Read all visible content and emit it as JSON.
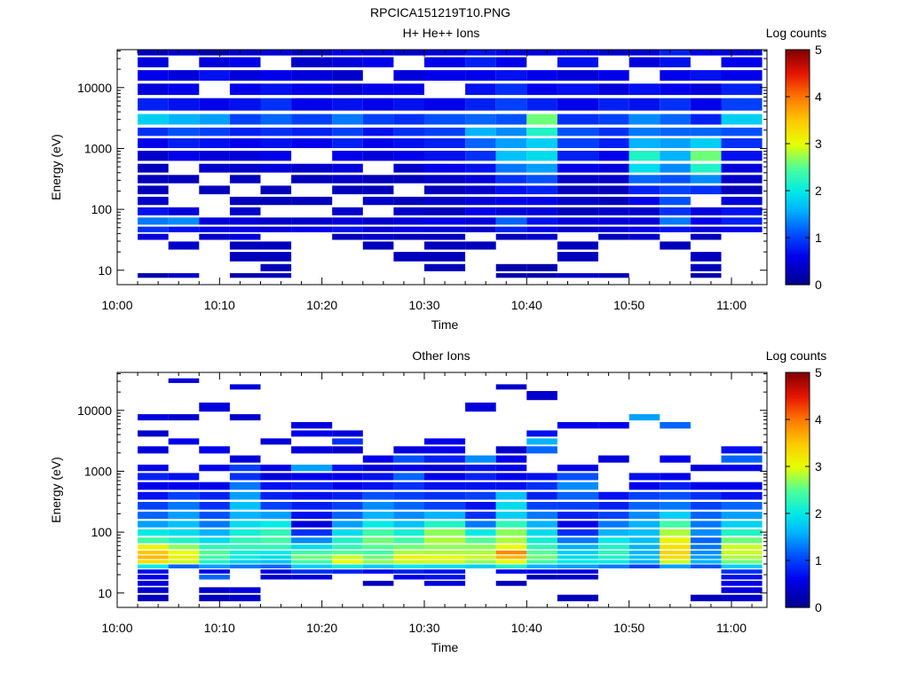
{
  "figure_title": "RPCICA151219T10.PNG",
  "chart_data": [
    {
      "type": "heatmap",
      "title": "H+ He++ Ions",
      "xlabel": "Time",
      "ylabel": "Energy (eV)",
      "x_ticks": [
        "10:00",
        "10:10",
        "10:20",
        "10:30",
        "10:40",
        "10:50",
        "11:00"
      ],
      "y_ticks": [
        "10",
        "100",
        "1000",
        "10000"
      ],
      "y_scale": "log",
      "ylim": [
        5.8,
        42000
      ],
      "colorbar": {
        "label": "Log counts",
        "ticks": [
          "0",
          "1",
          "2",
          "3",
          "4",
          "5"
        ],
        "range": [
          0,
          5
        ]
      },
      "time_bins": [
        "10:02-10:05",
        "10:05-10:08",
        "10:08-10:11",
        "10:11-10:14",
        "10:14-10:17",
        "10:17-10:21",
        "10:21-10:24",
        "10:24-10:27",
        "10:27-10:30",
        "10:30-10:34",
        "10:34-10:37",
        "10:37-10:40",
        "10:40-10:43",
        "10:43-10:47",
        "10:47-10:50",
        "10:50-10:53",
        "10:53-10:56",
        "10:56-10:59",
        "10:59-11:03"
      ],
      "energy_bands_eV": [
        40000,
        25000,
        15000,
        9000,
        5000,
        2700,
        1800,
        1200,
        700,
        450,
        300,
        200,
        130,
        90,
        60,
        45,
        35,
        25,
        16,
        10,
        8
      ],
      "log_counts": [
        [
          0.3,
          0.4,
          0.2,
          0.4,
          0.5,
          0.3,
          0.6,
          0.5,
          0.4,
          0.5,
          0.7,
          0.6,
          0.5,
          0.6,
          0.4,
          0.5,
          0.8,
          0.6,
          0.5
        ],
        [
          0.5,
          -1,
          0.5,
          0.6,
          -1,
          0.4,
          0.5,
          0.6,
          -1,
          0.6,
          0.8,
          0.6,
          -1,
          0.7,
          -1,
          0.5,
          0.7,
          -1,
          0.6
        ],
        [
          0.6,
          0.5,
          0.7,
          0.5,
          0.6,
          0.5,
          0.4,
          -1,
          0.5,
          0.6,
          0.6,
          0.7,
          0.6,
          0.5,
          0.6,
          -1,
          0.6,
          0.7,
          0.6
        ],
        [
          0.5,
          0.6,
          -1,
          0.6,
          0.7,
          0.6,
          0.5,
          0.6,
          0.6,
          -1,
          0.7,
          0.9,
          0.6,
          0.7,
          0.5,
          0.7,
          0.6,
          0.5,
          0.8
        ],
        [
          0.8,
          0.7,
          0.6,
          0.7,
          0.9,
          0.6,
          0.7,
          0.6,
          0.7,
          0.6,
          0.8,
          1.0,
          0.8,
          0.6,
          0.8,
          0.7,
          0.9,
          0.6,
          1.0
        ],
        [
          1.8,
          1.6,
          1.5,
          1.0,
          1.2,
          1.0,
          1.3,
          1.0,
          0.9,
          1.1,
          1.2,
          1.1,
          2.6,
          0.9,
          1.0,
          1.4,
          1.2,
          0.8,
          1.8
        ],
        [
          0.9,
          1.1,
          1.0,
          0.8,
          0.9,
          0.8,
          1.0,
          0.7,
          0.9,
          1.0,
          1.6,
          1.4,
          2.2,
          1.1,
          0.9,
          1.3,
          1.2,
          1.2,
          1.1
        ],
        [
          0.6,
          0.8,
          0.7,
          0.6,
          0.7,
          0.6,
          0.8,
          0.6,
          0.7,
          0.8,
          1.2,
          1.5,
          1.8,
          1.0,
          0.8,
          1.6,
          1.5,
          1.8,
          0.9
        ],
        [
          0.4,
          0.6,
          0.5,
          0.5,
          0.6,
          -1,
          0.6,
          0.5,
          0.6,
          0.7,
          0.9,
          1.7,
          1.9,
          0.8,
          0.6,
          2.2,
          1.6,
          2.6,
          0.7
        ],
        [
          0.3,
          -1,
          0.4,
          0.4,
          0.5,
          0.4,
          0.5,
          -1,
          0.4,
          0.6,
          0.7,
          1.3,
          1.5,
          0.6,
          0.5,
          1.9,
          1.4,
          2.2,
          0.5
        ],
        [
          0.3,
          0.3,
          -1,
          0.3,
          -1,
          0.3,
          0.4,
          0.3,
          0.3,
          0.4,
          0.5,
          0.9,
          1.1,
          0.4,
          0.4,
          1.2,
          1.1,
          1.4,
          0.4
        ],
        [
          0.3,
          -1,
          0.3,
          -1,
          0.3,
          -1,
          0.3,
          0.3,
          -1,
          0.3,
          0.4,
          0.7,
          0.8,
          0.3,
          0.3,
          0.8,
          1.0,
          0.9,
          0.3
        ],
        [
          0.4,
          -1,
          -1,
          0.3,
          0.3,
          0.3,
          -1,
          0.4,
          0.3,
          0.4,
          0.5,
          0.6,
          0.6,
          0.4,
          0.3,
          0.6,
          1.1,
          -1,
          0.5
        ],
        [
          0.7,
          0.5,
          -1,
          0.4,
          -1,
          -1,
          0.4,
          -1,
          0.4,
          0.3,
          0.6,
          0.5,
          0.5,
          0.3,
          0.4,
          0.4,
          0.9,
          0.5,
          0.7
        ],
        [
          1.3,
          1.4,
          0.5,
          0.5,
          0.4,
          0.4,
          0.5,
          0.4,
          0.5,
          0.6,
          0.5,
          1.2,
          0.7,
          0.5,
          0.5,
          0.5,
          1.3,
          0.6,
          0.8
        ],
        [
          0.9,
          0.7,
          0.6,
          0.6,
          0.5,
          0.6,
          0.7,
          0.5,
          0.6,
          0.5,
          0.4,
          0.8,
          0.6,
          0.4,
          0.5,
          0.6,
          0.7,
          0.5,
          0.6
        ],
        [
          0.5,
          -1,
          0.4,
          0.5,
          -1,
          -1,
          0.3,
          0.4,
          0.3,
          0.3,
          -1,
          0.3,
          0.4,
          -1,
          0.3,
          0.4,
          -1,
          0.3,
          -1
        ],
        [
          -1,
          0.4,
          -1,
          0.3,
          0.3,
          -1,
          -1,
          0.3,
          -1,
          0.3,
          0.3,
          -1,
          -1,
          0.3,
          -1,
          -1,
          0.3,
          -1,
          -1
        ],
        [
          -1,
          -1,
          -1,
          0.3,
          0.3,
          -1,
          -1,
          -1,
          0.3,
          0.3,
          -1,
          -1,
          -1,
          0.3,
          -1,
          -1,
          -1,
          0.3,
          -1
        ],
        [
          -1,
          -1,
          -1,
          -1,
          0.3,
          -1,
          -1,
          -1,
          -1,
          0.3,
          -1,
          0.2,
          0.2,
          -1,
          -1,
          -1,
          -1,
          0.3,
          -1
        ],
        [
          0.2,
          0.4,
          -1,
          0.2,
          0.3,
          -1,
          -1,
          -1,
          -1,
          -1,
          -1,
          0.2,
          0.2,
          0.4,
          0.3,
          -1,
          -1,
          0.2,
          -1
        ]
      ]
    },
    {
      "type": "heatmap",
      "title": "Other Ions",
      "xlabel": "Time",
      "ylabel": "Energy (eV)",
      "x_ticks": [
        "10:00",
        "10:10",
        "10:20",
        "10:30",
        "10:40",
        "10:50",
        "11:00"
      ],
      "y_ticks": [
        "10",
        "100",
        "1000",
        "10000"
      ],
      "y_scale": "log",
      "ylim": [
        5.8,
        42000
      ],
      "colorbar": {
        "label": "Log counts",
        "ticks": [
          "0",
          "1",
          "2",
          "3",
          "4",
          "5"
        ],
        "range": [
          0,
          5
        ]
      },
      "time_bins": [
        "10:02-10:05",
        "10:05-10:08",
        "10:08-10:11",
        "10:11-10:14",
        "10:14-10:17",
        "10:17-10:21",
        "10:21-10:24",
        "10:24-10:27",
        "10:27-10:30",
        "10:30-10:34",
        "10:34-10:37",
        "10:37-10:40",
        "10:40-10:43",
        "10:43-10:47",
        "10:47-10:50",
        "10:50-10:53",
        "10:53-10:56",
        "10:56-10:59",
        "10:59-11:03"
      ],
      "energy_bands_eV": [
        30000,
        24000,
        18000,
        10000,
        7500,
        5500,
        4000,
        3000,
        2200,
        1500,
        1100,
        800,
        550,
        380,
        260,
        180,
        130,
        95,
        70,
        55,
        45,
        38,
        32,
        27,
        22,
        18,
        14,
        11,
        8
      ],
      "log_counts": [
        [
          -1,
          0.5,
          -1,
          -1,
          -1,
          -1,
          -1,
          -1,
          -1,
          -1,
          -1,
          -1,
          -1,
          -1,
          -1,
          -1,
          -1,
          -1,
          -1
        ],
        [
          -1,
          -1,
          -1,
          0.5,
          -1,
          -1,
          -1,
          -1,
          -1,
          -1,
          -1,
          0.4,
          -1,
          -1,
          -1,
          -1,
          -1,
          -1,
          -1
        ],
        [
          -1,
          -1,
          -1,
          -1,
          -1,
          -1,
          -1,
          -1,
          -1,
          -1,
          -1,
          -1,
          0.4,
          -1,
          -1,
          -1,
          -1,
          -1,
          -1
        ],
        [
          -1,
          -1,
          0.5,
          -1,
          -1,
          -1,
          -1,
          -1,
          -1,
          -1,
          0.5,
          -1,
          -1,
          -1,
          -1,
          -1,
          -1,
          -1,
          -1
        ],
        [
          0.5,
          0.4,
          -1,
          0.4,
          -1,
          -1,
          -1,
          -1,
          -1,
          -1,
          -1,
          -1,
          -1,
          -1,
          -1,
          1.5,
          -1,
          -1,
          -1
        ],
        [
          -1,
          -1,
          -1,
          -1,
          -1,
          0.5,
          -1,
          -1,
          -1,
          -1,
          -1,
          -1,
          -1,
          0.6,
          0.6,
          -1,
          1.2,
          -1,
          -1
        ],
        [
          0.4,
          -1,
          -1,
          -1,
          -1,
          0.6,
          0.5,
          -1,
          -1,
          -1,
          -1,
          -1,
          0.7,
          -1,
          -1,
          -1,
          -1,
          -1,
          -1
        ],
        [
          -1,
          0.6,
          -1,
          -1,
          0.5,
          -1,
          0.9,
          -1,
          -1,
          0.6,
          -1,
          -1,
          1.6,
          -1,
          -1,
          -1,
          -1,
          -1,
          -1
        ],
        [
          0.5,
          -1,
          0.6,
          -1,
          -1,
          0.5,
          0.4,
          -1,
          0.5,
          0.6,
          -1,
          0.4,
          1.2,
          -1,
          -1,
          -1,
          -1,
          -1,
          0.7
        ],
        [
          -1,
          -1,
          -1,
          0.5,
          -1,
          -1,
          -1,
          0.6,
          1.1,
          0.8,
          1.4,
          0.6,
          -1,
          -1,
          0.5,
          -1,
          0.6,
          -1,
          1.2
        ],
        [
          0.6,
          -1,
          0.6,
          1.0,
          0.6,
          1.5,
          0.7,
          0.5,
          0.6,
          0.5,
          0.7,
          0.6,
          -1,
          0.6,
          -1,
          -1,
          -1,
          0.5,
          0.6
        ],
        [
          0.8,
          0.7,
          -1,
          0.9,
          0.5,
          0.6,
          0.6,
          0.7,
          1.2,
          0.6,
          0.8,
          0.6,
          0.7,
          1.1,
          -1,
          0.7,
          0.6,
          -1,
          -1
        ],
        [
          0.6,
          0.6,
          0.6,
          1.3,
          0.7,
          0.8,
          0.6,
          0.7,
          0.9,
          0.7,
          0.7,
          0.7,
          0.9,
          1.4,
          -1,
          0.6,
          0.8,
          0.6,
          0.6
        ],
        [
          0.7,
          1.0,
          0.8,
          1.5,
          0.8,
          0.7,
          0.8,
          1.1,
          1.0,
          0.9,
          1.0,
          1.7,
          0.8,
          1.2,
          0.7,
          1.0,
          1.1,
          0.9,
          0.7
        ],
        [
          1.0,
          1.3,
          0.9,
          1.7,
          1.0,
          0.8,
          1.0,
          1.4,
          1.2,
          1.0,
          0.7,
          1.9,
          1.0,
          1.0,
          0.8,
          1.2,
          1.3,
          1.0,
          1.2
        ],
        [
          1.2,
          1.5,
          1.1,
          1.6,
          1.5,
          0.7,
          1.2,
          1.6,
          1.4,
          1.6,
          0.9,
          1.8,
          1.3,
          0.8,
          1.0,
          1.4,
          1.8,
          1.2,
          1.5
        ],
        [
          1.5,
          1.7,
          1.3,
          1.9,
          2.0,
          0.5,
          1.5,
          2.0,
          1.7,
          2.2,
          1.3,
          2.3,
          1.6,
          0.6,
          1.3,
          1.6,
          2.4,
          1.3,
          1.8
        ],
        [
          2.0,
          1.9,
          1.6,
          2.1,
          2.3,
          0.9,
          1.9,
          2.4,
          2.1,
          2.7,
          2.0,
          2.7,
          1.9,
          0.9,
          1.6,
          1.7,
          2.8,
          1.4,
          2.2
        ],
        [
          2.4,
          2.2,
          1.9,
          2.3,
          2.4,
          1.4,
          2.2,
          2.6,
          2.4,
          2.8,
          2.5,
          2.8,
          2.1,
          1.3,
          2.0,
          1.7,
          3.1,
          1.2,
          2.6
        ],
        [
          3.1,
          2.7,
          2.3,
          2.3,
          2.3,
          1.9,
          2.3,
          2.5,
          2.6,
          2.7,
          2.7,
          3.0,
          2.3,
          1.6,
          2.2,
          1.6,
          3.3,
          1.3,
          2.9
        ],
        [
          3.5,
          3.0,
          2.5,
          2.1,
          2.0,
          2.4,
          2.5,
          2.4,
          2.8,
          2.8,
          2.8,
          3.9,
          2.5,
          1.8,
          2.3,
          1.6,
          3.4,
          1.4,
          2.9
        ],
        [
          3.6,
          3.1,
          2.4,
          2.0,
          1.9,
          2.6,
          2.9,
          2.6,
          3.1,
          3.0,
          2.9,
          3.6,
          2.6,
          1.9,
          2.2,
          1.7,
          3.3,
          1.5,
          2.8
        ],
        [
          3.3,
          2.9,
          2.2,
          1.8,
          1.7,
          2.4,
          3.0,
          2.7,
          2.9,
          2.9,
          2.7,
          3.0,
          2.4,
          2.0,
          2.0,
          1.6,
          2.9,
          1.6,
          2.6
        ],
        [
          2.0,
          1.2,
          1.5,
          1.3,
          1.2,
          1.8,
          2.1,
          1.8,
          2.0,
          1.9,
          1.8,
          2.2,
          1.6,
          1.5,
          1.3,
          1.0,
          1.5,
          1.1,
          1.8
        ],
        [
          0.7,
          -1,
          0.6,
          -1,
          0.5,
          0.9,
          0.8,
          0.6,
          0.8,
          0.7,
          -1,
          0.6,
          0.6,
          0.5,
          -1,
          -1,
          -1,
          -1,
          0.9
        ],
        [
          0.6,
          -1,
          1.2,
          -1,
          0.4,
          0.5,
          -1,
          -1,
          0.6,
          0.7,
          -1,
          -1,
          0.3,
          0.4,
          -1,
          -1,
          -1,
          -1,
          0.7
        ],
        [
          0.5,
          -1,
          -1,
          -1,
          -1,
          -1,
          -1,
          0.3,
          -1,
          0.5,
          -1,
          0.3,
          -1,
          -1,
          -1,
          -1,
          -1,
          -1,
          0.6
        ],
        [
          0.4,
          -1,
          0.4,
          0.5,
          -1,
          -1,
          -1,
          -1,
          -1,
          -1,
          -1,
          -1,
          -1,
          -1,
          -1,
          -1,
          -1,
          -1,
          0.5
        ],
        [
          0.3,
          -1,
          0.3,
          0.4,
          -1,
          -1,
          -1,
          -1,
          -1,
          -1,
          -1,
          -1,
          -1,
          0.3,
          -1,
          -1,
          -1,
          0.3,
          0.4
        ]
      ]
    }
  ]
}
